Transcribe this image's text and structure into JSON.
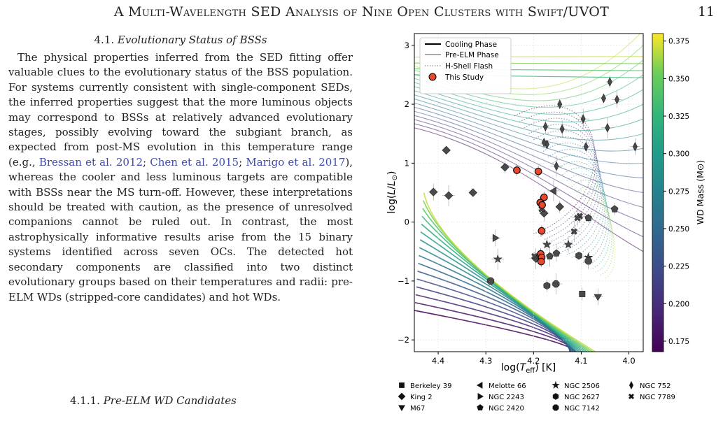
{
  "header": {
    "running_title": "A Multi-Wavelength SED Analysis of Nine Open Clusters with Swift/UVOT",
    "page_number": "11"
  },
  "section": {
    "number": "4.1.",
    "title": "Evolutionary Status of BSSs",
    "paragraph_parts": [
      "The physical properties inferred from the SED fitting offer valuable clues to the evolutionary status of the BSS population. For systems currently consistent with single-component SEDs, the inferred properties suggest that the more luminous objects may correspond to BSSs at relatively advanced evolutionary stages, possibly evolving toward the subgiant branch, as expected from post-MS evolution in this temperature range (e.g., ",
      "; ",
      "; ",
      "), whereas the cooler and less luminous targets are compatible with BSSs near the MS turn-off. However, these interpretations should be treated with caution, as the presence of unresolved companions cannot be ruled out. In contrast, the most astrophysically informative results arise from the 15 binary systems identified across seven OCs. The detected hot secondary components are classified into two distinct evolutionary groups based on their temperatures and radii: pre-ELM WDs (stripped-core candidates) and hot WDs."
    ],
    "citations": [
      "Bressan et al. 2012",
      "Chen et al. 2015",
      "Marigo et al. 2017"
    ]
  },
  "subsection": {
    "number": "4.1.1.",
    "title": "Pre-ELM WD Candidates"
  },
  "figure": {
    "chart_data": {
      "type": "scatter",
      "xlabel": "log(T_eff) [K]",
      "ylabel": "log(L/L⊙)",
      "xlim": [
        4.45,
        3.97
      ],
      "ylim": [
        -2.2,
        3.2
      ],
      "x_ticks": [
        "4.4",
        "4.3",
        "4.2",
        "4.1",
        "4.0"
      ],
      "y_ticks": [
        "−2",
        "−1",
        "0",
        "1",
        "2",
        "3"
      ],
      "colorbar_label": "WD Mass (M⊙)",
      "colorbar_ticks": [
        "0.375",
        "0.350",
        "0.325",
        "0.300",
        "0.275",
        "0.250",
        "0.225",
        "0.200",
        "0.175"
      ],
      "colorbar_range": [
        0.168,
        0.38
      ],
      "legend_lines": [
        "Cooling Phase",
        "Pre-ELM Phase",
        "H-Shell Flash",
        "This Study"
      ],
      "marker_legend": [
        {
          "label": "Berkeley 39",
          "marker": "square"
        },
        {
          "label": "King 2",
          "marker": "diamond"
        },
        {
          "label": "M67",
          "marker": "triangle-down"
        },
        {
          "label": "Melotte 66",
          "marker": "triangle-left"
        },
        {
          "label": "NGC 2243",
          "marker": "triangle-right"
        },
        {
          "label": "NGC 2420",
          "marker": "pentagon"
        },
        {
          "label": "NGC 2506",
          "marker": "star"
        },
        {
          "label": "NGC 2627",
          "marker": "hexagon"
        },
        {
          "label": "NGC 7142",
          "marker": "octagon"
        },
        {
          "label": "NGC 752",
          "marker": "thin-diamond"
        },
        {
          "label": "NGC 7789",
          "marker": "x"
        }
      ],
      "this_study": [
        {
          "x": 4.235,
          "y": 0.88
        },
        {
          "x": 4.19,
          "y": 0.86
        },
        {
          "x": 4.178,
          "y": 0.42
        },
        {
          "x": 4.186,
          "y": 0.33
        },
        {
          "x": 4.182,
          "y": 0.29
        },
        {
          "x": 4.183,
          "y": -0.15
        },
        {
          "x": 4.185,
          "y": -0.54
        },
        {
          "x": 4.183,
          "y": -0.6
        },
        {
          "x": 4.184,
          "y": -0.67
        }
      ],
      "literature_points": [
        {
          "x": 4.383,
          "y": 1.22,
          "m": "diamond"
        },
        {
          "x": 4.26,
          "y": 0.93,
          "m": "diamond"
        },
        {
          "x": 4.41,
          "y": 0.51,
          "m": "diamond"
        },
        {
          "x": 4.378,
          "y": 0.45,
          "m": "diamond"
        },
        {
          "x": 4.327,
          "y": 0.5,
          "m": "diamond"
        },
        {
          "x": 4.145,
          "y": 0.26,
          "m": "diamond"
        },
        {
          "x": 4.178,
          "y": 0.15,
          "m": "diamond"
        },
        {
          "x": 4.195,
          "y": -0.62,
          "m": "diamond"
        },
        {
          "x": 4.145,
          "y": 2.0,
          "m": "thin-diamond"
        },
        {
          "x": 4.175,
          "y": 1.62,
          "m": "thin-diamond"
        },
        {
          "x": 4.14,
          "y": 1.58,
          "m": "thin-diamond"
        },
        {
          "x": 4.096,
          "y": 1.75,
          "m": "thin-diamond"
        },
        {
          "x": 4.053,
          "y": 2.1,
          "m": "thin-diamond"
        },
        {
          "x": 4.04,
          "y": 2.38,
          "m": "thin-diamond"
        },
        {
          "x": 4.025,
          "y": 2.08,
          "m": "thin-diamond"
        },
        {
          "x": 4.045,
          "y": 1.6,
          "m": "thin-diamond"
        },
        {
          "x": 4.172,
          "y": 1.32,
          "m": "thin-diamond"
        },
        {
          "x": 4.09,
          "y": 1.28,
          "m": "thin-diamond"
        },
        {
          "x": 3.987,
          "y": 1.28,
          "m": "thin-diamond"
        },
        {
          "x": 4.152,
          "y": 0.95,
          "m": "thin-diamond"
        },
        {
          "x": 4.178,
          "y": 1.35,
          "m": "thin-diamond"
        },
        {
          "x": 4.103,
          "y": 0.1,
          "m": "x"
        },
        {
          "x": 4.108,
          "y": 0.07,
          "m": "x"
        },
        {
          "x": 4.115,
          "y": -0.16,
          "m": "x"
        },
        {
          "x": 4.198,
          "y": -0.58,
          "m": "x"
        },
        {
          "x": 4.183,
          "y": 0.22,
          "m": "x"
        },
        {
          "x": 4.28,
          "y": -0.27,
          "m": "triangle-right"
        },
        {
          "x": 4.158,
          "y": 0.53,
          "m": "triangle-left"
        },
        {
          "x": 4.085,
          "y": -0.6,
          "m": "star"
        },
        {
          "x": 4.172,
          "y": -0.38,
          "m": "star"
        },
        {
          "x": 4.127,
          "y": -0.38,
          "m": "star"
        },
        {
          "x": 4.275,
          "y": -0.63,
          "m": "star"
        },
        {
          "x": 4.085,
          "y": 0.07,
          "m": "pentagon"
        },
        {
          "x": 4.03,
          "y": 0.22,
          "m": "pentagon"
        },
        {
          "x": 4.152,
          "y": -0.53,
          "m": "pentagon"
        },
        {
          "x": 4.166,
          "y": -0.58,
          "m": "pentagon"
        },
        {
          "x": 4.105,
          "y": -0.57,
          "m": "hexagon"
        },
        {
          "x": 4.172,
          "y": -1.08,
          "m": "hexagon"
        },
        {
          "x": 4.085,
          "y": -0.66,
          "m": "octagon"
        },
        {
          "x": 4.153,
          "y": -1.05,
          "m": "octagon"
        },
        {
          "x": 4.29,
          "y": -1.0,
          "m": "octagon"
        },
        {
          "x": 4.098,
          "y": -1.22,
          "m": "square"
        },
        {
          "x": 4.065,
          "y": -1.27,
          "m": "triangle-down"
        }
      ]
    }
  }
}
